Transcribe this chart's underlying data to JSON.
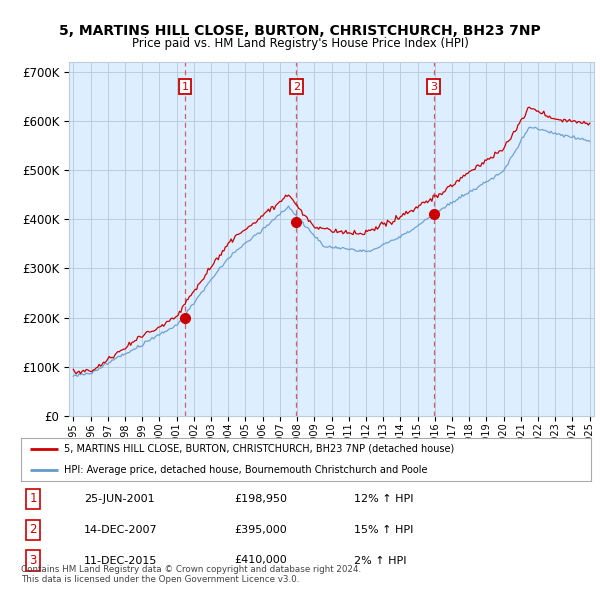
{
  "title_line1": "5, MARTINS HILL CLOSE, BURTON, CHRISTCHURCH, BH23 7NP",
  "title_line2": "Price paid vs. HM Land Registry's House Price Index (HPI)",
  "legend_entries": [
    "5, MARTINS HILL CLOSE, BURTON, CHRISTCHURCH, BH23 7NP (detached house)",
    "HPI: Average price, detached house, Bournemouth Christchurch and Poole"
  ],
  "table_rows": [
    {
      "num": "1",
      "date": "25-JUN-2001",
      "price": "£198,950",
      "hpi": "12% ↑ HPI"
    },
    {
      "num": "2",
      "date": "14-DEC-2007",
      "price": "£395,000",
      "hpi": "15% ↑ HPI"
    },
    {
      "num": "3",
      "date": "11-DEC-2015",
      "price": "£410,000",
      "hpi": "2% ↑ HPI"
    }
  ],
  "footer": "Contains HM Land Registry data © Crown copyright and database right 2024.\nThis data is licensed under the Open Government Licence v3.0.",
  "hpi_color": "#6699cc",
  "price_color": "#cc0000",
  "bg_chart_color": "#dceeff",
  "background_color": "#ffffff",
  "grid_color": "#bbccdd",
  "ylim": [
    0,
    720000
  ],
  "xlim_start": 1994.75,
  "xlim_end": 2025.25,
  "sale_years": [
    2001.48,
    2007.96,
    2015.94
  ],
  "sale_prices": [
    198950,
    395000,
    410000
  ],
  "sale_labels": [
    "1",
    "2",
    "3"
  ]
}
